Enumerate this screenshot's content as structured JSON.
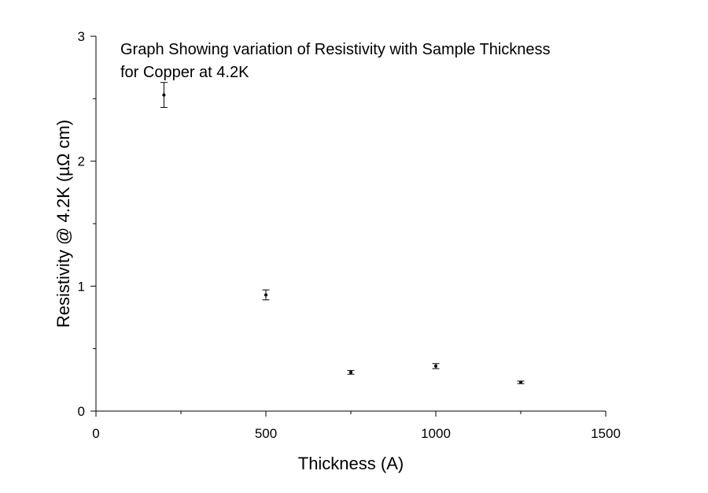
{
  "chart_data": {
    "type": "scatter",
    "title_lines": [
      "Graph Showing variation of Resistivity with Sample Thickness",
      "for Copper at 4.2K"
    ],
    "xlabel": "Thickness (A)",
    "ylabel": "Resistivity @ 4.2K (µΩ cm)",
    "xlim": [
      0,
      1500
    ],
    "ylim": [
      0,
      3
    ],
    "x_major_ticks": [
      0,
      500,
      1000,
      1500
    ],
    "x_minor_ticks": [
      250,
      750,
      1250
    ],
    "y_major_ticks": [
      0,
      1,
      2,
      3
    ],
    "y_minor_ticks": [
      0.5,
      1.5,
      2.5
    ],
    "x_tick_labels": [
      "0",
      "500",
      "1000",
      "1500"
    ],
    "y_tick_labels": [
      "0",
      "1",
      "2",
      "3"
    ],
    "grid": false,
    "error_bars": true,
    "series": [
      {
        "x": [
          200,
          500,
          750,
          1000,
          1250
        ],
        "y": [
          2.53,
          0.93,
          0.31,
          0.36,
          0.23
        ],
        "err": [
          0.1,
          0.04,
          0.015,
          0.02,
          0.01
        ]
      }
    ]
  }
}
